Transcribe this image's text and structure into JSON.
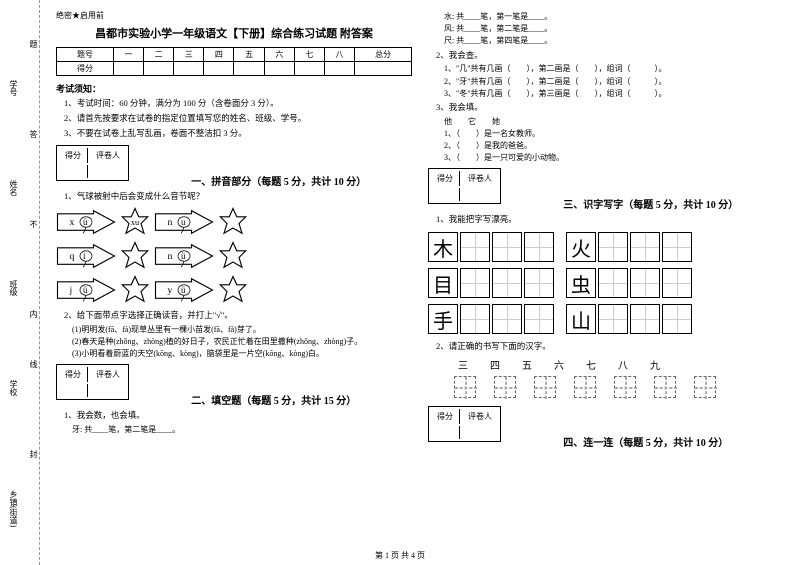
{
  "margin": {
    "l1": "乡镇(街道)",
    "l2": "学校",
    "l3": "班级",
    "l4": "姓名",
    "l5": "学号",
    "c1": "封",
    "c2": "线",
    "c3": "内",
    "c4": "不",
    "c5": "答",
    "c6": "题"
  },
  "secret": "绝密★启用前",
  "title": "昌都市实验小学一年级语文【下册】综合练习试题 附答案",
  "score_header": [
    "题号",
    "一",
    "二",
    "三",
    "四",
    "五",
    "六",
    "七",
    "八",
    "总分"
  ],
  "score_row": "得分",
  "notice_title": "考试须知：",
  "notice1": "1、考试时间：60 分钟，满分为 100 分（含卷面分 3 分）。",
  "notice2": "2、请首先按要求在试卷的指定位置填写您的姓名、班级、学号。",
  "notice3": "3、不要在试卷上乱写乱画，卷面不整洁扣 3 分。",
  "scorebox_l": "得分",
  "scorebox_r": "评卷人",
  "sec1": "一、拼音部分（每题 5 分，共计 10 分）",
  "q1_1": "1、气球被射中后会变成什么音节呢？",
  "pinyin": {
    "r1a": "x",
    "r1b": "ü",
    "r1c": "xu",
    "r1d": "n",
    "r1e": "u",
    "r2a": "q",
    "r2b": "i",
    "r2c": "",
    "r2d": "n",
    "r2e": "ü",
    "r3a": "j",
    "r3b": "ü",
    "r3c": "",
    "r3d": "y",
    "r3e": "ü"
  },
  "q1_2": "2、给下面带点字选择正确读音，并打上\"√\"。",
  "q1_2_1": "(1)明明发(fā、fà)现草丛里有一棵小苗发(fā、fà)芽了。",
  "q1_2_2": "(2)春天是种(zhǒng、zhòng)植的好日子，农民正忙着在田里撒种(zhǒng、zhòng)子。",
  "q1_2_3": "(3)小明看着蔚蓝的天空(kōng、kòng)，脑袋里是一片空(kōng、kòng)白。",
  "sec2": "二、填空题（每题 5 分，共计 15 分）",
  "q2_1": "1、我会数，也会填。",
  "q2_1_t": "牙: 共____笔，第二笔是____。",
  "right": {
    "l1": "水: 共____笔，第一笔是____。",
    "l2": "风: 共____笔，第二笔是____。",
    "l3": "尺: 共____笔，第四笔是____。",
    "q2": "2、我会查。",
    "q2_1": "1、\"几\"共有几画（　　），第二画是（　　），组词（　　　）。",
    "q2_2": "2、\"牙\"共有几画（　　），第二画是（　　），组词（　　　）。",
    "q2_3": "3、\"冬\"共有几画（　　），第三画是（　　），组词（　　　）。",
    "q3": "3、我会填。",
    "q3_h": "他　　它　　她",
    "q3_1": "1、（　　）是一名女教师。",
    "q3_2": "2、（　　）是我的爸爸。",
    "q3_3": "3、（　　）是一只可爱的小动物。"
  },
  "sec3": "三、识字写字（每题 5 分，共计 10 分）",
  "q3_1": "1、我能把字写漂亮。",
  "chars": {
    "c1": "木",
    "c2": "火",
    "c3": "目",
    "c4": "虫",
    "c5": "手",
    "c6": "山"
  },
  "q3_2": "2、请正确的书写下面的汉字。",
  "nums": [
    "三",
    "四",
    "五",
    "六",
    "七",
    "八",
    "九"
  ],
  "sec4": "四、连一连（每题 5 分，共计 10 分）",
  "footer": "第 1 页 共 4 页"
}
